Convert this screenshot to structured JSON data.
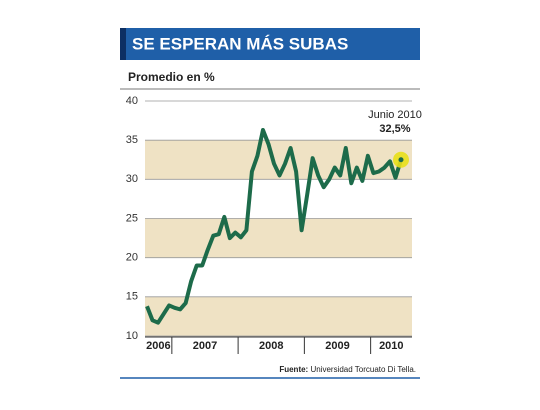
{
  "chart_data": {
    "type": "line",
    "title": "SE ESPERAN MÁS SUBAS",
    "subtitle": "Promedio en %",
    "categories": [
      "2006",
      null,
      null,
      null,
      null,
      "2007",
      null,
      null,
      null,
      null,
      null,
      null,
      null,
      null,
      null,
      null,
      null,
      "2008",
      null,
      null,
      null,
      null,
      null,
      null,
      null,
      null,
      null,
      null,
      null,
      "2009",
      null,
      null,
      null,
      null,
      null,
      null,
      null,
      null,
      null,
      null,
      null,
      "2010",
      null,
      null,
      null,
      null,
      null
    ],
    "series": [
      {
        "name": "Promedio",
        "color": "#1d6b4a",
        "values": [
          13.8,
          12,
          11.7,
          12.8,
          13.9,
          13.6,
          13.4,
          14.2,
          17,
          19,
          19,
          21,
          22.8,
          23,
          25.2,
          22.5,
          23.2,
          22.6,
          23.5,
          31,
          33,
          36.3,
          34.5,
          32,
          30.5,
          32,
          34,
          31,
          23.5,
          28,
          32.7,
          30.5,
          29,
          30,
          31.5,
          30.5,
          34,
          29.5,
          31.5,
          29.8,
          33,
          30.8,
          31,
          31.5,
          32.3,
          30.2,
          32.5
        ]
      }
    ],
    "value_labels": {
      "46": "32,5%"
    },
    "annotation": "Junio 2010",
    "ylim": [
      10,
      40
    ],
    "yticks": [
      10,
      15,
      20,
      25,
      30,
      35,
      40
    ],
    "band_color": "#efe2c4",
    "grid": true,
    "source_label": "Fuente:",
    "source": "Universidad Torcuato Di Tella."
  }
}
